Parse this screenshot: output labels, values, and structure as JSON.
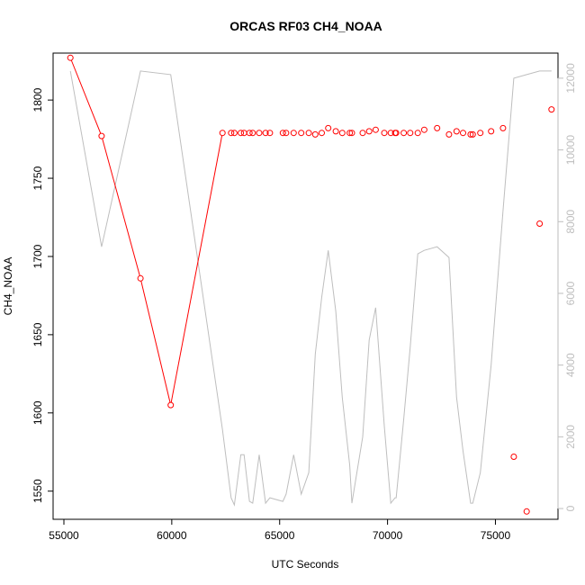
{
  "chart_data": {
    "type": "line",
    "title": "ORCAS RF03 CH4_NOAA",
    "xlabel": "UTC Seconds",
    "ylabel": "CH4_NOAA",
    "xlim": [
      54500,
      77900
    ],
    "ylim": [
      1532,
      1830
    ],
    "y2lim": [
      -300,
      12700
    ],
    "x_ticks": [
      55000,
      60000,
      65000,
      70000,
      75000
    ],
    "y_ticks": [
      1550,
      1600,
      1650,
      1700,
      1750,
      1800
    ],
    "y2_ticks": [
      0,
      2000,
      4000,
      6000,
      8000,
      10000,
      12000
    ],
    "grid": false,
    "colors": {
      "ch4": "#ff0000",
      "altitude": "#bebebe",
      "frame": "#000000"
    },
    "series": [
      {
        "role": "primary",
        "style": "line+points",
        "connect_gap_x": 700,
        "x": [
          55300,
          56750,
          58550,
          59950,
          62350,
          62750,
          62900,
          63200,
          63350,
          63600,
          63750,
          64050,
          64350,
          64550,
          65150,
          65300,
          65650,
          66000,
          66350,
          66650,
          66950,
          67250,
          67600,
          67900,
          68250,
          68350,
          68850,
          69150,
          69450,
          69850,
          70150,
          70350,
          70400,
          70750,
          71050,
          71400,
          71700,
          72300,
          72850,
          73200,
          73500,
          73850,
          73950,
          74300,
          74800,
          75350,
          75850,
          76450,
          77050,
          77600
        ],
        "y": [
          1827,
          1777,
          1686,
          1605,
          1779,
          1779,
          1779,
          1779,
          1779,
          1779,
          1779,
          1779,
          1779,
          1779,
          1779,
          1779,
          1779,
          1779,
          1779,
          1778,
          1779,
          1782,
          1780,
          1779,
          1779,
          1779,
          1779,
          1780,
          1781,
          1779,
          1779,
          1779,
          1779,
          1779,
          1779,
          1779,
          1781,
          1782,
          1778,
          1780,
          1779,
          1778,
          1778,
          1779,
          1780,
          1782,
          1572,
          1537,
          1721,
          1794
        ]
      },
      {
        "role": "secondary-axis",
        "style": "line",
        "x": [
          55300,
          56750,
          58550,
          59950,
          62350,
          62750,
          62900,
          63200,
          63350,
          63600,
          63750,
          64050,
          64350,
          64550,
          65150,
          65300,
          65650,
          66000,
          66350,
          66650,
          66950,
          67250,
          67600,
          67900,
          68250,
          68350,
          68850,
          69150,
          69450,
          69850,
          70150,
          70350,
          70400,
          70750,
          71050,
          71400,
          71700,
          72300,
          72850,
          73200,
          73500,
          73850,
          73950,
          74300,
          74800,
          75350,
          75850,
          76450,
          77050,
          77600
        ],
        "y": [
          12200,
          7300,
          12200,
          12100,
          2200,
          300,
          100,
          1500,
          1500,
          200,
          150,
          1500,
          150,
          300,
          200,
          400,
          1500,
          400,
          1000,
          4300,
          5900,
          7200,
          5500,
          3100,
          1200,
          150,
          2000,
          4700,
          5600,
          2300,
          150,
          300,
          300,
          2500,
          4500,
          7100,
          7200,
          7300,
          7000,
          3100,
          1600,
          150,
          150,
          1000,
          4000,
          8300,
          12000,
          12100,
          12200,
          12200
        ]
      }
    ]
  }
}
